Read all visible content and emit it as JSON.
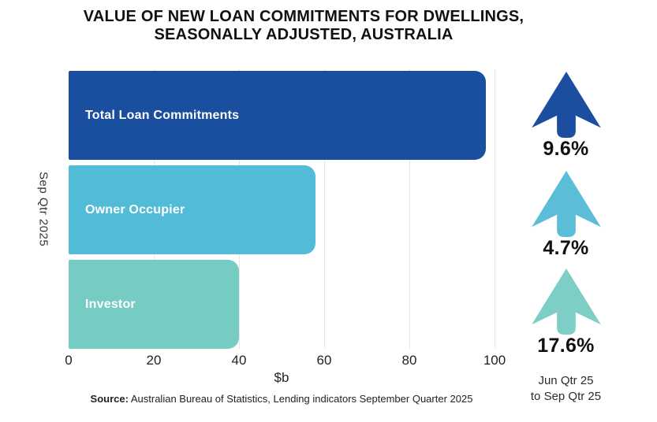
{
  "title": {
    "line1": "VALUE OF NEW LOAN COMMITMENTS FOR DWELLINGS,",
    "line2": "SEASONALLY ADJUSTED, AUSTRALIA"
  },
  "chart_data": {
    "type": "bar",
    "orientation": "horizontal",
    "title": "VALUE OF NEW LOAN COMMITMENTS FOR DWELLINGS, SEASONALLY ADJUSTED, AUSTRALIA",
    "categories": [
      "Total Loan Commitments",
      "Owner Occupier",
      "Investor"
    ],
    "values": [
      98,
      58,
      40
    ],
    "bar_colors": [
      "#1A4E9F",
      "#52BBD8",
      "#76CCC2"
    ],
    "xlabel": "$b",
    "ylabel": "Sep Qtr 2025",
    "xlim": [
      0,
      100
    ],
    "xticks": [
      0,
      20,
      40,
      60,
      80,
      100
    ],
    "grid": true,
    "legend": "none",
    "quarter_changes": [
      {
        "category": "Total Loan Commitments",
        "change": "9.6%",
        "direction": "up"
      },
      {
        "category": "Owner Occupier",
        "change": "4.7%",
        "direction": "up"
      },
      {
        "category": "Investor",
        "change": "17.6%",
        "direction": "up"
      }
    ],
    "change_period": "Jun Qtr 25 to Sep Qtr 25"
  },
  "changes_panel": {
    "items": [
      {
        "value": "9.6%",
        "direction": "up",
        "color": "#1B4E9F"
      },
      {
        "value": "4.7%",
        "direction": "up",
        "color": "#5CBDD9"
      },
      {
        "value": "17.6%",
        "direction": "up",
        "color": "#7DCFC5"
      }
    ],
    "caption_line1": "Jun Qtr 25",
    "caption_line2": "to Sep Qtr 25"
  },
  "source": {
    "label": "Source:",
    "text": "Australian Bureau of Statistics, Lending indicators September Quarter 2025"
  }
}
